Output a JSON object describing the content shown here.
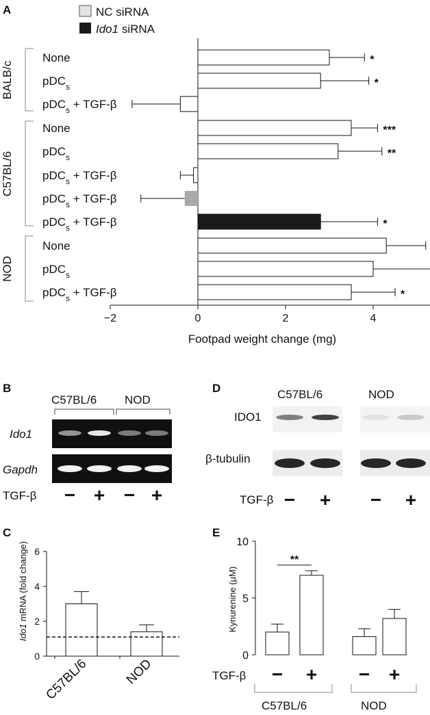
{
  "panels": {
    "a": {
      "letter": "A"
    },
    "b": {
      "letter": "B"
    },
    "c": {
      "letter": "C"
    },
    "d": {
      "letter": "D"
    },
    "e": {
      "letter": "E"
    }
  },
  "legend": {
    "nc": "NC siRNA",
    "ido1_italic": "Ido1",
    "ido1_rest": " siRNA"
  },
  "row_labels": [
    "None",
    "pDCs",
    "pDCs + TGF-β",
    "None",
    "pDCs",
    "pDCs + TGF-β",
    "pDCs + TGF-β",
    "pDCs + TGF-β",
    "None",
    "pDCs",
    "pDCs + TGF-β"
  ],
  "groups": [
    "BALB/c",
    "C57BL/6",
    "NOD"
  ],
  "gel_b": {
    "group1": "C57BL/6",
    "group2": "NOD",
    "row1": "Ido1",
    "row2": "Gapdh",
    "tgf_label": "TGF-β",
    "signs": [
      "−",
      "+",
      "−",
      "+"
    ]
  },
  "blot_d": {
    "group1": "C57BL/6",
    "group2": "NOD",
    "row1": "IDO1",
    "row2": "β-tubulin",
    "tgf_label": "TGF-β",
    "signs": [
      "−",
      "+",
      "−",
      "+"
    ]
  },
  "e_labels": {
    "tgf_label": "TGF-β",
    "signs": [
      "−",
      "+",
      "−",
      "+"
    ],
    "group1": "C57BL/6",
    "group2": "NOD",
    "sig": "**"
  },
  "colors": {
    "nc": "#ffffff",
    "ido1": "#1a1a1a",
    "gray": "#a9a9a9"
  },
  "chart_data": [
    {
      "type": "bar",
      "orientation": "horizontal",
      "xlabel": "Footpad weight change (mg)",
      "xlim": [
        -2,
        6
      ],
      "xticks": [
        -2,
        0,
        2,
        4,
        6
      ],
      "categories": [
        "None",
        "pDCs",
        "pDCs + TGF-β",
        "None",
        "pDCs",
        "pDCs + TGF-β",
        "pDCs + TGF-β",
        "pDCs + TGF-β",
        "None",
        "pDCs",
        "pDCs + TGF-β"
      ],
      "groups": [
        "BALB/c",
        "BALB/c",
        "BALB/c",
        "C57BL/6",
        "C57BL/6",
        "C57BL/6",
        "C57BL/6",
        "C57BL/6",
        "NOD",
        "NOD",
        "NOD"
      ],
      "values": [
        3.0,
        2.8,
        -0.4,
        3.5,
        3.2,
        -0.1,
        -0.3,
        2.8,
        4.3,
        4.0,
        3.5
      ],
      "errors": [
        0.8,
        1.1,
        1.1,
        0.6,
        1.0,
        0.3,
        1.0,
        1.3,
        0.9,
        1.4,
        1.0
      ],
      "fill": [
        "nc",
        "nc",
        "nc",
        "nc",
        "nc",
        "nc",
        "gray",
        "ido1",
        "nc",
        "nc",
        "nc"
      ],
      "significance": [
        "*",
        "*",
        "",
        "***",
        "**",
        "",
        "",
        "*",
        "**",
        "*",
        "*"
      ],
      "legend": [
        "NC siRNA",
        "Ido1 siRNA"
      ]
    },
    {
      "type": "bar",
      "ylabel": "Ido1 mRNA (fold change)",
      "ylabel_italic": "Ido1",
      "ylabel_rest": " mRNA (fold change)",
      "ylim": [
        0,
        6
      ],
      "yticks": [
        0,
        2,
        4,
        6
      ],
      "categories": [
        "C57BL/6",
        "NOD"
      ],
      "values": [
        3.0,
        1.4
      ],
      "errors": [
        0.7,
        0.4
      ],
      "reference_line": 1.1
    },
    {
      "type": "bar",
      "ylabel": "Kynurenine (μM)",
      "ylim": [
        0,
        10
      ],
      "yticks": [
        0,
        5,
        10
      ],
      "categories": [
        "C57BL/6 −",
        "C57BL/6 +",
        "NOD −",
        "NOD +"
      ],
      "values": [
        2.0,
        7.0,
        1.6,
        3.2
      ],
      "errors": [
        0.7,
        0.4,
        0.7,
        0.8
      ],
      "significance": [
        {
          "between": [
            0,
            1
          ],
          "label": "**"
        }
      ]
    }
  ]
}
